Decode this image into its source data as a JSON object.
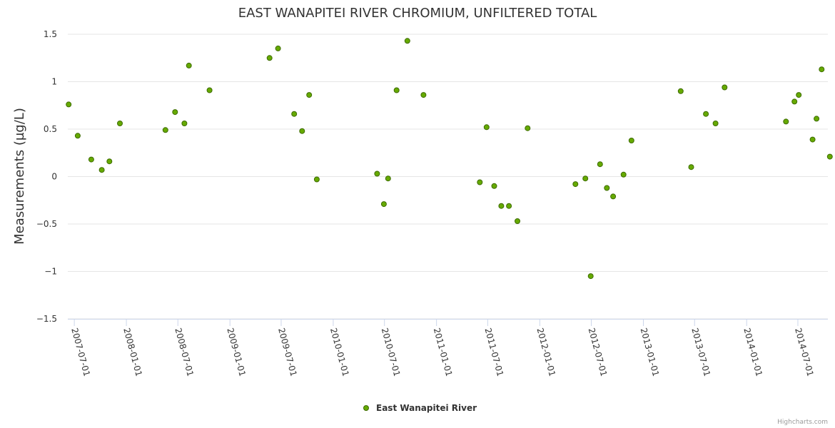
{
  "chart_data": {
    "type": "scatter",
    "title": "EAST WANAPITEI RIVER CHROMIUM, UNFILTERED TOTAL",
    "xlabel": "",
    "ylabel": "Measurements (µg/L)",
    "ylim": [
      -1.5,
      1.5
    ],
    "yticks": [
      1.5,
      1,
      0.5,
      0,
      -0.5,
      -1,
      -1.5
    ],
    "ytick_labels": [
      "1.5",
      "1",
      "0.5",
      "0",
      "−0.5",
      "−1",
      "−1.5"
    ],
    "xlim": [
      "2007-06-08",
      "2014-10-15"
    ],
    "xticks": [
      "2007-07-01",
      "2008-01-01",
      "2008-07-01",
      "2009-01-01",
      "2009-07-01",
      "2010-01-01",
      "2010-07-01",
      "2011-01-01",
      "2011-07-01",
      "2012-01-01",
      "2012-07-01",
      "2013-01-01",
      "2013-07-01",
      "2014-01-01",
      "2014-07-01"
    ],
    "grid": true,
    "legend_position": "bottom-center",
    "series": [
      {
        "name": "East Wanapitei River",
        "color": "#66aa00",
        "points": [
          [
            "2007-06-11",
            0.76
          ],
          [
            "2007-07-13",
            0.43
          ],
          [
            "2007-08-30",
            0.18
          ],
          [
            "2007-10-06",
            0.07
          ],
          [
            "2007-11-02",
            0.16
          ],
          [
            "2007-12-09",
            0.56
          ],
          [
            "2008-05-18",
            0.49
          ],
          [
            "2008-06-21",
            0.68
          ],
          [
            "2008-07-24",
            0.56
          ],
          [
            "2008-08-09",
            1.17
          ],
          [
            "2008-10-21",
            0.91
          ],
          [
            "2009-05-21",
            1.25
          ],
          [
            "2009-06-20",
            1.35
          ],
          [
            "2009-08-16",
            0.66
          ],
          [
            "2009-09-13",
            0.48
          ],
          [
            "2009-10-08",
            0.86
          ],
          [
            "2009-11-04",
            -0.03
          ],
          [
            "2010-06-05",
            0.03
          ],
          [
            "2010-06-29",
            -0.29
          ],
          [
            "2010-07-14",
            -0.02
          ],
          [
            "2010-08-13",
            0.91
          ],
          [
            "2010-09-20",
            1.43
          ],
          [
            "2010-11-16",
            0.86
          ],
          [
            "2011-06-03",
            -0.06
          ],
          [
            "2011-06-27",
            0.52
          ],
          [
            "2011-07-24",
            -0.1
          ],
          [
            "2011-08-18",
            -0.31
          ],
          [
            "2011-09-14",
            -0.31
          ],
          [
            "2011-10-14",
            -0.47
          ],
          [
            "2011-11-19",
            0.51
          ],
          [
            "2012-05-06",
            -0.08
          ],
          [
            "2012-06-10",
            -0.02
          ],
          [
            "2012-06-29",
            -1.05
          ],
          [
            "2012-08-01",
            0.13
          ],
          [
            "2012-08-25",
            -0.12
          ],
          [
            "2012-09-16",
            -0.21
          ],
          [
            "2012-10-23",
            0.02
          ],
          [
            "2012-11-20",
            0.38
          ],
          [
            "2013-05-13",
            0.9
          ],
          [
            "2013-06-19",
            0.1
          ],
          [
            "2013-08-10",
            0.66
          ],
          [
            "2013-09-13",
            0.56
          ],
          [
            "2013-10-15",
            0.94
          ],
          [
            "2014-05-20",
            0.58
          ],
          [
            "2014-06-19",
            0.79
          ],
          [
            "2014-07-04",
            0.86
          ],
          [
            "2014-08-22",
            0.39
          ],
          [
            "2014-09-05",
            0.61
          ],
          [
            "2014-09-23",
            1.13
          ],
          [
            "2014-10-22",
            0.21
          ]
        ]
      }
    ]
  },
  "credits": "Highcharts.com"
}
